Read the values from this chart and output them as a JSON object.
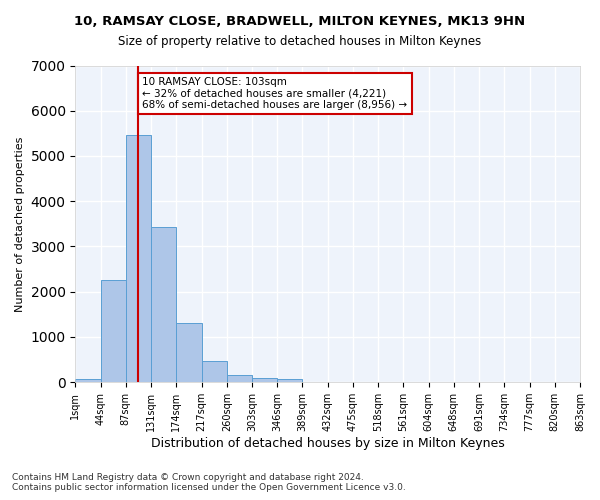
{
  "title1": "10, RAMSAY CLOSE, BRADWELL, MILTON KEYNES, MK13 9HN",
  "title2": "Size of property relative to detached houses in Milton Keynes",
  "xlabel": "Distribution of detached houses by size in Milton Keynes",
  "ylabel": "Number of detached properties",
  "footer1": "Contains HM Land Registry data © Crown copyright and database right 2024.",
  "footer2": "Contains public sector information licensed under the Open Government Licence v3.0.",
  "bin_labels": [
    "1sqm",
    "44sqm",
    "87sqm",
    "131sqm",
    "174sqm",
    "217sqm",
    "260sqm",
    "303sqm",
    "346sqm",
    "389sqm",
    "432sqm",
    "475sqm",
    "518sqm",
    "561sqm",
    "604sqm",
    "648sqm",
    "691sqm",
    "734sqm",
    "777sqm",
    "820sqm",
    "863sqm"
  ],
  "bar_values": [
    75,
    2270,
    5470,
    3430,
    1310,
    460,
    155,
    100,
    65,
    0,
    0,
    0,
    0,
    0,
    0,
    0,
    0,
    0,
    0,
    0
  ],
  "bar_color": "#aec6e8",
  "bar_edge_color": "#5a9fd4",
  "bg_color": "#eef3fb",
  "grid_color": "#ffffff",
  "vline_x": 2.0,
  "vline_color": "#cc0000",
  "annotation_text": "10 RAMSAY CLOSE: 103sqm\n← 32% of detached houses are smaller (4,221)\n68% of semi-detached houses are larger (8,956) →",
  "annotation_box_color": "#cc0000",
  "ylim": [
    0,
    7000
  ],
  "yticks": [
    0,
    1000,
    2000,
    3000,
    4000,
    5000,
    6000,
    7000
  ]
}
